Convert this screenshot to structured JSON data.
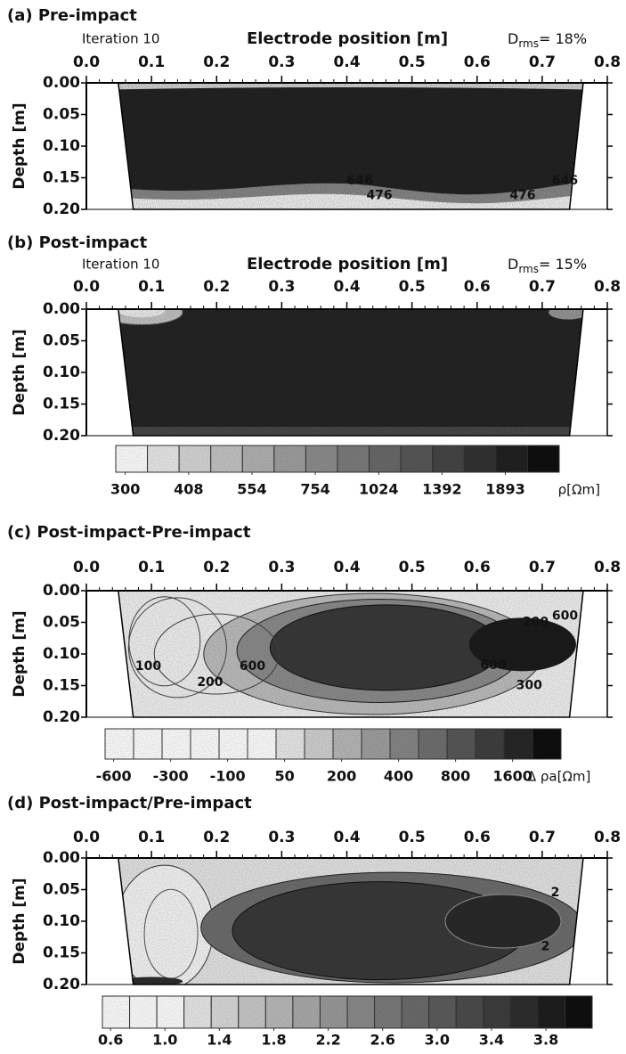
{
  "chart_data": [
    {
      "type": "contour",
      "title": "(a) Pre-impact",
      "iteration": "Iteration 10",
      "xlabel": "Electrode position [m]",
      "ylabel": "Depth [m]",
      "misfit": {
        "symbol": "D",
        "subscript": "rms",
        "text": "= 18%"
      },
      "xlim": [
        0,
        0.8
      ],
      "ylim": [
        0.2,
        0
      ],
      "xticks": [
        {
          "value": 0,
          "label": "0.0"
        },
        0.1,
        0.2,
        0.3,
        0.4,
        0.5,
        0.6,
        0.7,
        0.8
      ],
      "yticks": [
        {
          "value": 0,
          "label": "0.00"
        },
        0.05,
        {
          "value": 0.1,
          "label": "0.10"
        },
        0.15,
        {
          "value": 0.2,
          "label": "0.20"
        }
      ],
      "contour_labels": [
        646,
        476,
        476,
        646
      ]
    },
    {
      "type": "contour",
      "title": "(b) Post-impact",
      "iteration": "Iteration 10",
      "xlabel": "Electrode position [m]",
      "ylabel": "Depth [m]",
      "misfit": {
        "symbol": "D",
        "subscript": "rms",
        "text": "= 15%"
      },
      "xlim": [
        0,
        0.8
      ],
      "ylim": [
        0.2,
        0
      ],
      "xticks": [
        {
          "value": 0,
          "label": "0.0"
        },
        0.1,
        0.2,
        0.3,
        0.4,
        0.5,
        0.6,
        0.7,
        0.8
      ],
      "yticks": [
        {
          "value": 0,
          "label": "0.00"
        },
        0.05,
        {
          "value": 0.1,
          "label": "0.10"
        },
        0.15,
        {
          "value": 0.2,
          "label": "0.20"
        }
      ],
      "colorbar": {
        "ticks": [
          300,
          408,
          554,
          754,
          1024,
          1392,
          1893
        ],
        "label": "ρ[Ωm]"
      }
    },
    {
      "type": "contour",
      "title": "(c) Post-impact-Pre-impact",
      "ylabel": "Depth [m]",
      "xlim": [
        0,
        0.8
      ],
      "ylim": [
        0.2,
        0
      ],
      "xticks": [
        {
          "value": 0,
          "label": "0.0"
        },
        0.1,
        0.2,
        0.3,
        0.4,
        0.5,
        0.6,
        0.7,
        0.8
      ],
      "yticks": [
        {
          "value": 0,
          "label": "0.00"
        },
        0.05,
        {
          "value": 0.1,
          "label": "0.10"
        },
        0.15,
        {
          "value": 0.2,
          "label": "0.20"
        }
      ],
      "contour_labels": [
        200,
        600,
        100,
        200,
        600,
        600,
        300
      ],
      "colorbar": {
        "ticks": [
          -600,
          -300,
          -100,
          50,
          200,
          400,
          800,
          1600
        ],
        "label": "Δ ρa[Ωm]"
      }
    },
    {
      "type": "contour",
      "title": "(d) Post-impact/Pre-impact",
      "ylabel": "Depth [m]",
      "xlim": [
        0,
        0.8
      ],
      "ylim": [
        0.2,
        0
      ],
      "xticks": [
        {
          "value": 0,
          "label": "0.0"
        },
        0.1,
        0.2,
        0.3,
        0.4,
        0.5,
        0.6,
        0.7,
        0.8
      ],
      "yticks": [
        {
          "value": 0,
          "label": "0.00"
        },
        0.05,
        {
          "value": 0.1,
          "label": "0.10"
        },
        0.15,
        {
          "value": 0.2,
          "label": "0.20"
        }
      ],
      "contour_labels": [
        2,
        2
      ],
      "colorbar": {
        "ticks": [
          0.6,
          {
            "value": 1,
            "label": "1.0"
          },
          1.4,
          1.8,
          2.2,
          2.6,
          {
            "value": 3,
            "label": "3.0"
          },
          3.4,
          3.8
        ]
      }
    }
  ]
}
